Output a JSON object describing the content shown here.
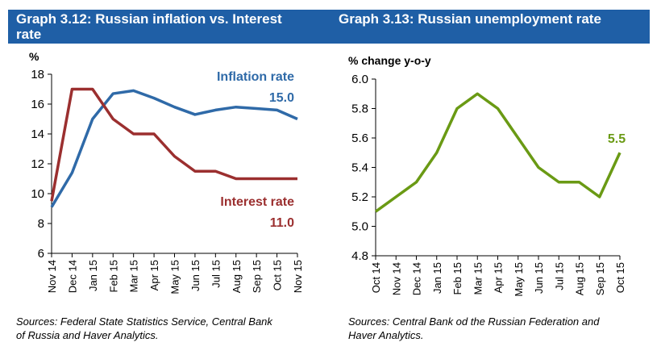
{
  "header": {
    "left_title": "Graph 3.12: Russian inflation vs. Interest rate",
    "right_title": "Graph 3.13: Russian unemployment rate",
    "color": "#1f5fa6"
  },
  "chart_data": [
    {
      "type": "line",
      "title": "Graph 3.12: Russian inflation vs. Interest rate",
      "ylabel": "%",
      "ylim": [
        6,
        18
      ],
      "yticks": [
        6,
        8,
        10,
        12,
        14,
        16,
        18
      ],
      "categories": [
        "Nov 14",
        "Dec 14",
        "Jan 15",
        "Feb 15",
        "Mar 15",
        "Apr 15",
        "May 15",
        "Jun 15",
        "Jul 15",
        "Aug 15",
        "Sep 15",
        "Oct 15",
        "Nov 15"
      ],
      "grid": false,
      "series": [
        {
          "name": "Inflation rate",
          "color": "#2f6aa8",
          "end_label": "15.0",
          "values": [
            9.1,
            11.4,
            15.0,
            16.7,
            16.9,
            16.4,
            15.8,
            15.3,
            15.6,
            15.8,
            15.7,
            15.6,
            15.0
          ]
        },
        {
          "name": "Interest rate",
          "color": "#9b2f2f",
          "end_label": "11.0",
          "values": [
            9.5,
            17.0,
            17.0,
            15.0,
            14.0,
            14.0,
            12.5,
            11.5,
            11.5,
            11.0,
            11.0,
            11.0,
            11.0
          ]
        }
      ],
      "source": "Sources: Federal State Statistics Service, Central Bank of Russia and Haver Analytics."
    },
    {
      "type": "line",
      "title": "Graph 3.13: Russian unemployment rate",
      "ylabel": "% change y-o-y",
      "ylim": [
        4.8,
        6.0
      ],
      "yticks": [
        "4.8",
        "5.0",
        "5.2",
        "5.4",
        "5.6",
        "5.8",
        "6.0"
      ],
      "categories": [
        "Oct 14",
        "Nov 14",
        "Dec 14",
        "Jan 15",
        "Feb 15",
        "Mar 15",
        "Apr 15",
        "May 15",
        "Jun 15",
        "Jul 15",
        "Aug 15",
        "Sep 15",
        "Oct 15"
      ],
      "grid": false,
      "series": [
        {
          "color": "#6a9a14",
          "end_label": "5.5",
          "values": [
            5.1,
            5.2,
            5.3,
            5.5,
            5.8,
            5.9,
            5.8,
            5.6,
            5.4,
            5.3,
            5.3,
            5.2,
            5.5
          ]
        }
      ],
      "source": "Sources: Central Bank od the Russian Federation and Haver Analytics."
    }
  ]
}
